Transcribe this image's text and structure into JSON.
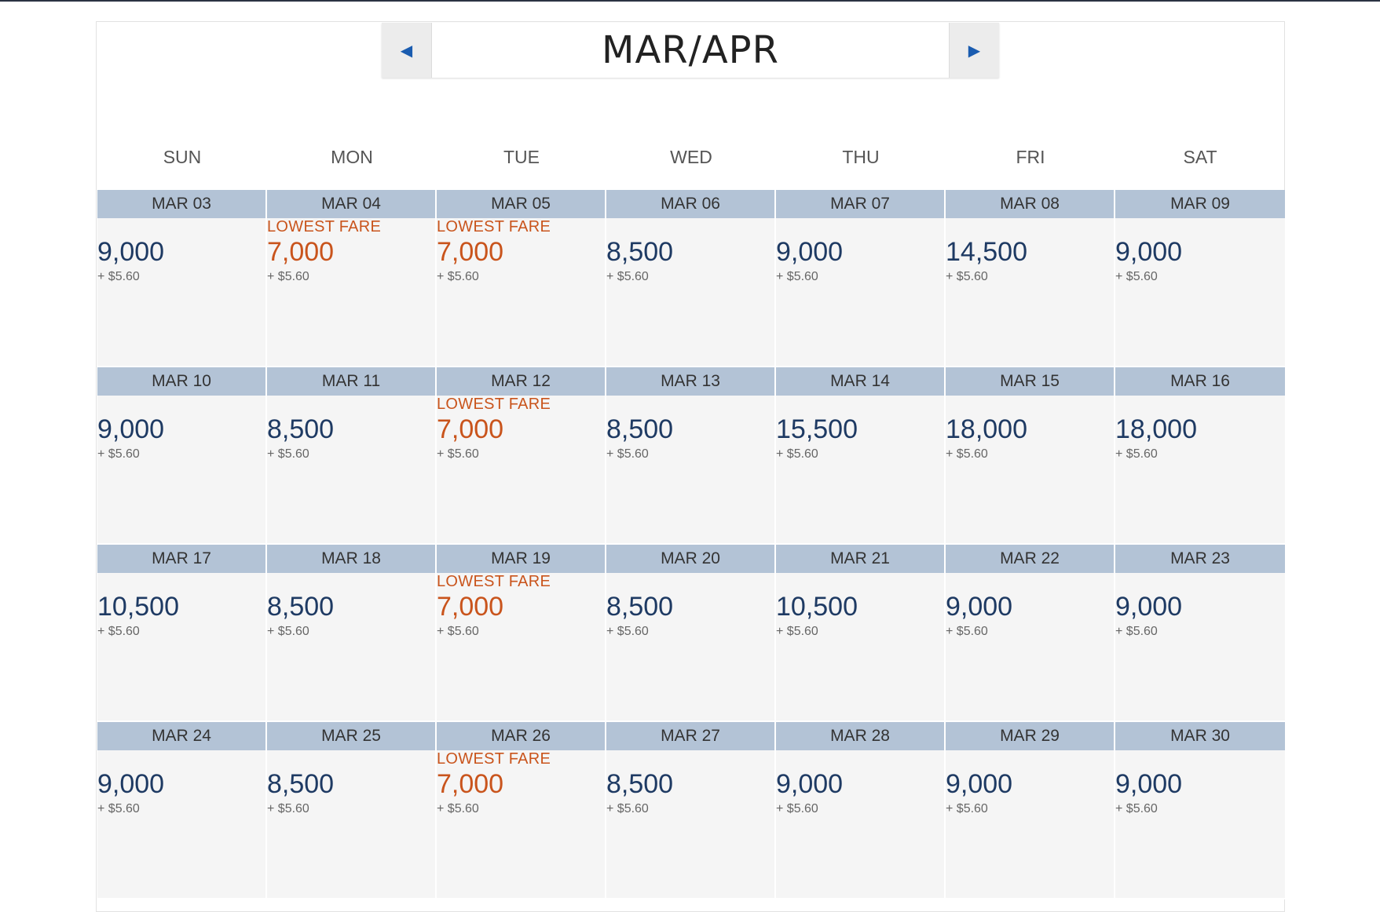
{
  "header": {
    "month": "MAR/APR",
    "prev_icon": "triangle-left-icon",
    "next_icon": "triangle-right-icon"
  },
  "colors": {
    "date_bar": "#b3c3d6",
    "miles": "#1e3a63",
    "lowest": "#c9541c",
    "nav_arrow": "#1a5cb0"
  },
  "weekdays": [
    "SUN",
    "MON",
    "TUE",
    "WED",
    "THU",
    "FRI",
    "SAT"
  ],
  "weeks": [
    [
      {
        "date": "MAR 03",
        "miles": "9,000",
        "tax": "+ $5.60",
        "lowest": ""
      },
      {
        "date": "MAR 04",
        "miles": "7,000",
        "tax": "+ $5.60",
        "lowest": "LOWEST FARE"
      },
      {
        "date": "MAR 05",
        "miles": "7,000",
        "tax": "+ $5.60",
        "lowest": "LOWEST FARE"
      },
      {
        "date": "MAR 06",
        "miles": "8,500",
        "tax": "+ $5.60",
        "lowest": ""
      },
      {
        "date": "MAR 07",
        "miles": "9,000",
        "tax": "+ $5.60",
        "lowest": ""
      },
      {
        "date": "MAR 08",
        "miles": "14,500",
        "tax": "+ $5.60",
        "lowest": ""
      },
      {
        "date": "MAR 09",
        "miles": "9,000",
        "tax": "+ $5.60",
        "lowest": ""
      }
    ],
    [
      {
        "date": "MAR 10",
        "miles": "9,000",
        "tax": "+ $5.60",
        "lowest": ""
      },
      {
        "date": "MAR 11",
        "miles": "8,500",
        "tax": "+ $5.60",
        "lowest": ""
      },
      {
        "date": "MAR 12",
        "miles": "7,000",
        "tax": "+ $5.60",
        "lowest": "LOWEST FARE"
      },
      {
        "date": "MAR 13",
        "miles": "8,500",
        "tax": "+ $5.60",
        "lowest": ""
      },
      {
        "date": "MAR 14",
        "miles": "15,500",
        "tax": "+ $5.60",
        "lowest": ""
      },
      {
        "date": "MAR 15",
        "miles": "18,000",
        "tax": "+ $5.60",
        "lowest": ""
      },
      {
        "date": "MAR 16",
        "miles": "18,000",
        "tax": "+ $5.60",
        "lowest": ""
      }
    ],
    [
      {
        "date": "MAR 17",
        "miles": "10,500",
        "tax": "+ $5.60",
        "lowest": ""
      },
      {
        "date": "MAR 18",
        "miles": "8,500",
        "tax": "+ $5.60",
        "lowest": ""
      },
      {
        "date": "MAR 19",
        "miles": "7,000",
        "tax": "+ $5.60",
        "lowest": "LOWEST FARE"
      },
      {
        "date": "MAR 20",
        "miles": "8,500",
        "tax": "+ $5.60",
        "lowest": ""
      },
      {
        "date": "MAR 21",
        "miles": "10,500",
        "tax": "+ $5.60",
        "lowest": ""
      },
      {
        "date": "MAR 22",
        "miles": "9,000",
        "tax": "+ $5.60",
        "lowest": ""
      },
      {
        "date": "MAR 23",
        "miles": "9,000",
        "tax": "+ $5.60",
        "lowest": ""
      }
    ],
    [
      {
        "date": "MAR 24",
        "miles": "9,000",
        "tax": "+ $5.60",
        "lowest": ""
      },
      {
        "date": "MAR 25",
        "miles": "8,500",
        "tax": "+ $5.60",
        "lowest": ""
      },
      {
        "date": "MAR 26",
        "miles": "7,000",
        "tax": "+ $5.60",
        "lowest": "LOWEST FARE"
      },
      {
        "date": "MAR 27",
        "miles": "8,500",
        "tax": "+ $5.60",
        "lowest": ""
      },
      {
        "date": "MAR 28",
        "miles": "9,000",
        "tax": "+ $5.60",
        "lowest": ""
      },
      {
        "date": "MAR 29",
        "miles": "9,000",
        "tax": "+ $5.60",
        "lowest": ""
      },
      {
        "date": "MAR 30",
        "miles": "9,000",
        "tax": "+ $5.60",
        "lowest": ""
      }
    ]
  ]
}
